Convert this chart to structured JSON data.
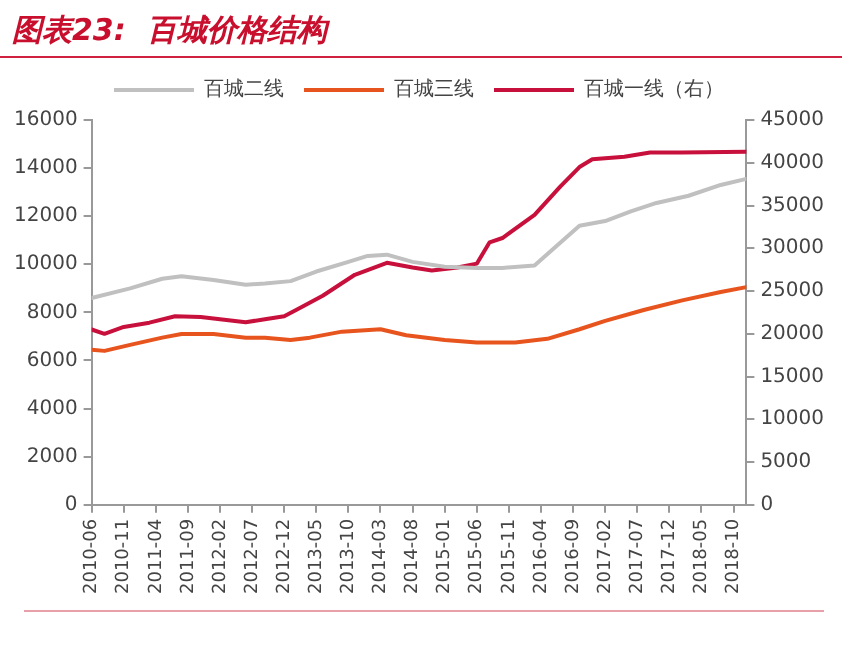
{
  "chart_data": {
    "type": "line",
    "title": "图表23:  百城价格结构",
    "xlim": [
      "2010-06",
      "2018-12"
    ],
    "xticks": [
      "2010-06",
      "2010-11",
      "2011-04",
      "2011-09",
      "2012-02",
      "2012-07",
      "2012-12",
      "2013-05",
      "2013-10",
      "2014-03",
      "2014-08",
      "2015-01",
      "2015-06",
      "2015-11",
      "2016-04",
      "2016-09",
      "2017-02",
      "2017-07",
      "2017-12",
      "2018-05",
      "2018-10"
    ],
    "ylim": [
      0,
      16000
    ],
    "yticks": [
      0,
      2000,
      4000,
      6000,
      8000,
      10000,
      12000,
      14000,
      16000
    ],
    "y2lim": [
      0,
      45000
    ],
    "y2ticks": [
      0,
      5000,
      10000,
      15000,
      20000,
      25000,
      30000,
      35000,
      40000,
      45000
    ],
    "grid": false,
    "legend": "top",
    "marker": "none",
    "line_style": "solid",
    "series": [
      {
        "name": "百城二线",
        "color": "#c0c0c0",
        "x": [
          "2010-06",
          "2010-12",
          "2011-05",
          "2011-08",
          "2012-01",
          "2012-06",
          "2012-09",
          "2013-01",
          "2013-05",
          "2013-10",
          "2014-01",
          "2014-04",
          "2014-08",
          "2015-01",
          "2015-06",
          "2015-10",
          "2016-03",
          "2016-07",
          "2016-10",
          "2017-02",
          "2017-06",
          "2017-10",
          "2018-03",
          "2018-08",
          "2018-12"
        ],
        "values": [
          8600,
          9000,
          9400,
          9500,
          9350,
          9150,
          9200,
          9300,
          9700,
          10100,
          10350,
          10400,
          10100,
          9900,
          9850,
          9850,
          9950,
          10900,
          11600,
          11800,
          12200,
          12550,
          12850,
          13300,
          13550
        ]
      },
      {
        "name": "百城三线",
        "color": "#e8541e",
        "x": [
          "2010-06",
          "2010-08",
          "2010-12",
          "2011-05",
          "2011-08",
          "2012-01",
          "2012-06",
          "2012-09",
          "2013-01",
          "2013-04",
          "2013-09",
          "2014-03",
          "2014-07",
          "2015-01",
          "2015-06",
          "2015-12",
          "2016-05",
          "2016-10",
          "2017-02",
          "2017-08",
          "2018-02",
          "2018-08",
          "2018-12"
        ],
        "values": [
          6450,
          6400,
          6650,
          6950,
          7100,
          7100,
          6950,
          6950,
          6850,
          6950,
          7200,
          7300,
          7050,
          6850,
          6750,
          6750,
          6900,
          7300,
          7650,
          8100,
          8500,
          8850,
          9050
        ]
      },
      {
        "name": "百城一线（右）",
        "color": "#c8103c",
        "axis": "y2",
        "x": [
          "2010-06",
          "2010-08",
          "2010-11",
          "2011-03",
          "2011-07",
          "2011-11",
          "2012-02",
          "2012-06",
          "2012-09",
          "2012-12",
          "2013-02",
          "2013-06",
          "2013-11",
          "2014-04",
          "2014-08",
          "2014-11",
          "2015-03",
          "2015-06",
          "2015-08",
          "2015-10",
          "2016-03",
          "2016-07",
          "2016-10",
          "2016-12",
          "2017-05",
          "2017-09",
          "2018-02",
          "2018-12"
        ],
        "values": [
          20500,
          20000,
          20800,
          21300,
          22050,
          21950,
          21700,
          21350,
          21700,
          22050,
          22850,
          24450,
          26900,
          28300,
          27750,
          27400,
          27750,
          28200,
          30700,
          31200,
          33900,
          37200,
          39500,
          40400,
          40700,
          41200,
          41200,
          41300
        ]
      }
    ]
  }
}
